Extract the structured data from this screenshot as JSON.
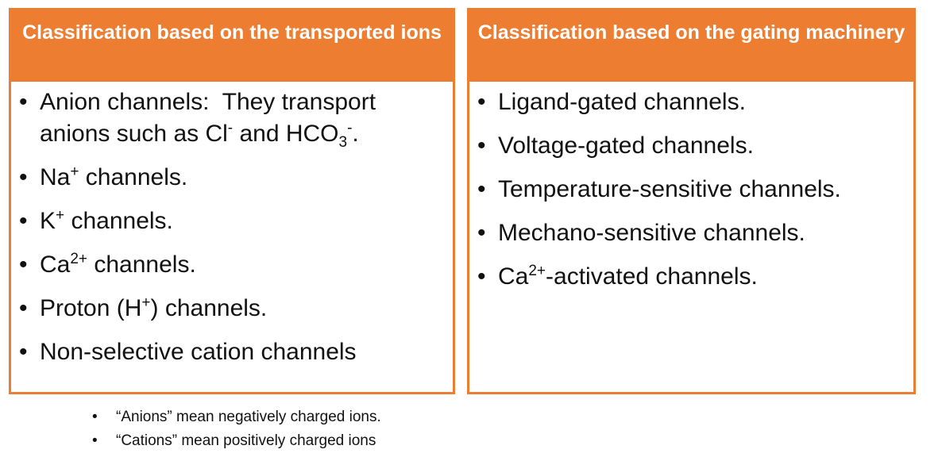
{
  "panels": [
    {
      "title": "Classification based on the transported ions",
      "items": [
        [
          "Anion channels:  They transport anions such as Cl",
          {
            "sup": "-"
          },
          " and HCO",
          {
            "sub": "3"
          },
          {
            "sup": "-"
          },
          "."
        ],
        [
          "Na",
          {
            "sup": "+"
          },
          " channels."
        ],
        [
          "K",
          {
            "sup": "+"
          },
          " channels."
        ],
        [
          "Ca",
          {
            "sup": "2+"
          },
          " channels."
        ],
        [
          "Proton (H",
          {
            "sup": "+"
          },
          ") channels."
        ],
        [
          "Non-selective cation channels"
        ]
      ]
    },
    {
      "title": "Classification based on the gating machinery",
      "items": [
        [
          "Ligand-gated channels."
        ],
        [
          "Voltage-gated channels."
        ],
        [
          "Temperature-sensitive channels."
        ],
        [
          "Mechano-sensitive channels."
        ],
        [
          "Ca",
          {
            "sup": "2+"
          },
          "-activated channels."
        ]
      ]
    }
  ],
  "notes": [
    "“Anions” mean negatively charged ions.",
    "“Cations” mean positively charged ions"
  ]
}
